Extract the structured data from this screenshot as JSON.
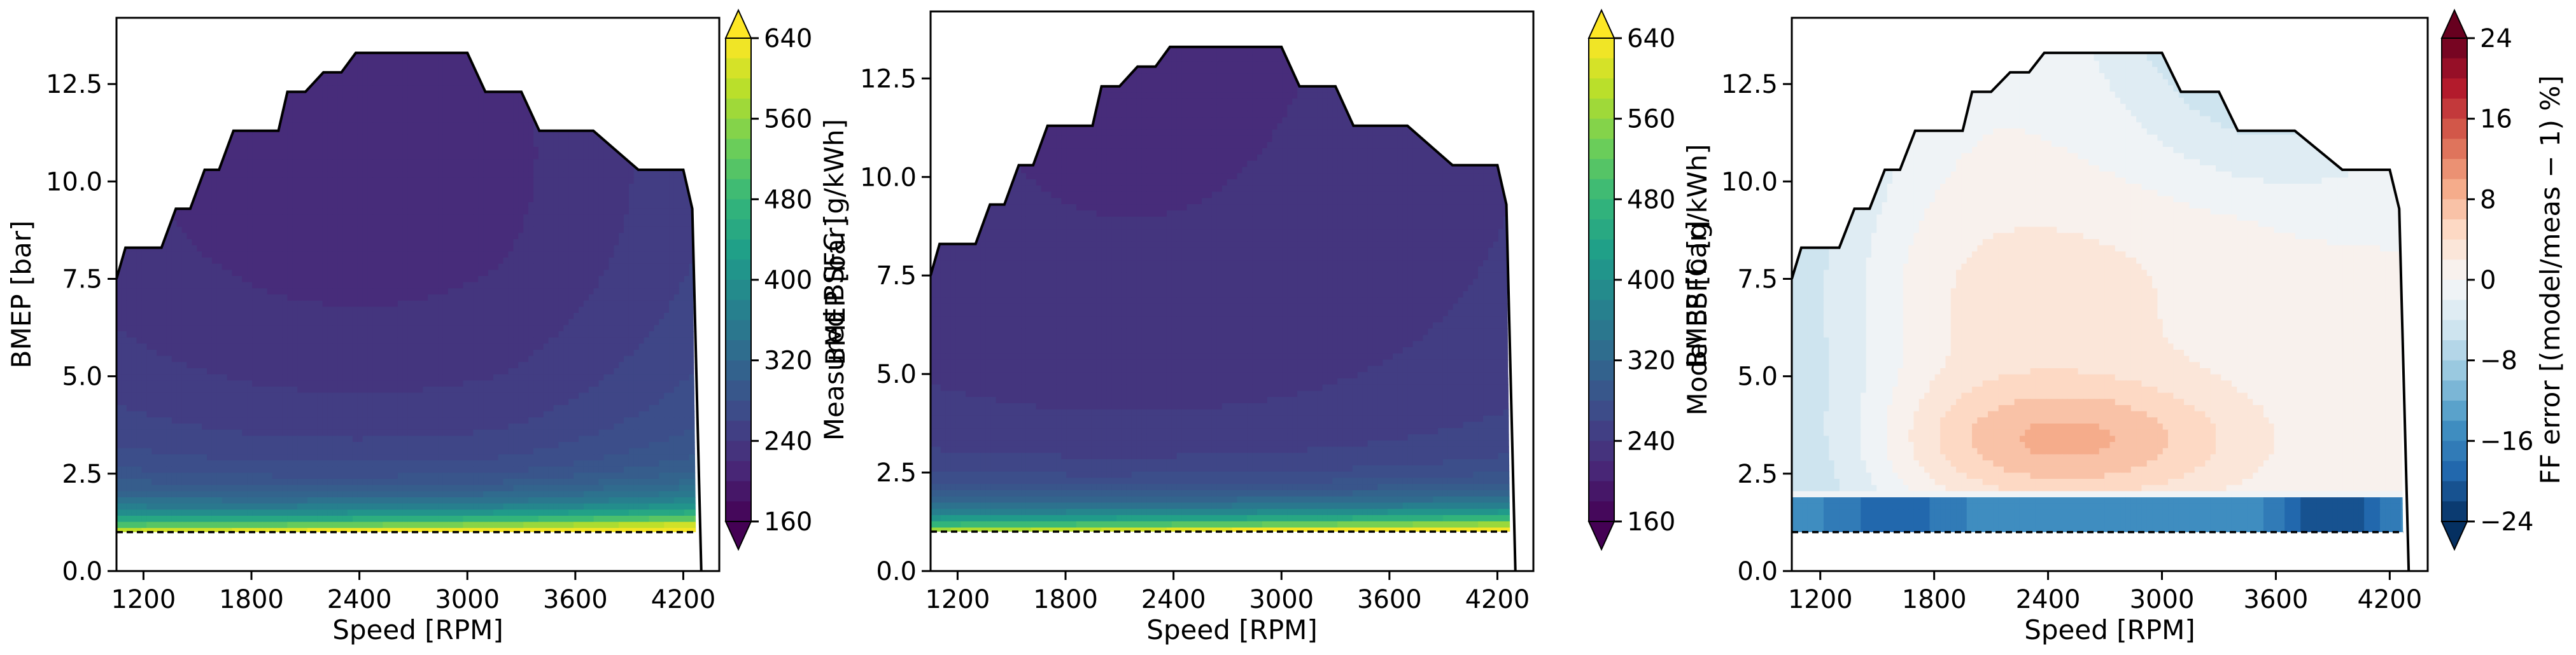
{
  "figure": {
    "panels": [
      {
        "colorbar_label": "Measured BSFC [g/kWh]",
        "colormap": "viridis"
      },
      {
        "colorbar_label": "Model BSFC [g/kWh]",
        "colormap": "viridis"
      },
      {
        "colorbar_label": "FF error  [(model/meas − 1) %]",
        "colormap": "RdBu_r"
      }
    ]
  },
  "chart_data": [
    {
      "type": "heatmap",
      "title": "",
      "xlabel": "Speed [RPM]",
      "ylabel": "BMEP [bar]",
      "xlim": [
        1050,
        4400
      ],
      "ylim": [
        0,
        14.2
      ],
      "xticks": [
        "1200",
        "1800",
        "2400",
        "3000",
        "3600",
        "4200"
      ],
      "yticks": [
        "0.0",
        "2.5",
        "5.0",
        "7.5",
        "10.0",
        "12.5"
      ],
      "colorbar": {
        "label": "Measured BSFC [g/kWh]",
        "range": [
          160,
          640
        ],
        "ticks": [
          "160",
          "240",
          "320",
          "400",
          "480",
          "560",
          "640"
        ]
      },
      "limit_curve": {
        "x": [
          1050,
          1100,
          1300,
          1380,
          1460,
          1540,
          1620,
          1700,
          1800,
          1950,
          2000,
          2100,
          2200,
          2300,
          2380,
          3000,
          3100,
          3300,
          3400,
          3700,
          3950,
          4200,
          4250
        ],
        "y": [
          7.5,
          8.3,
          8.3,
          9.3,
          9.3,
          10.3,
          10.3,
          11.3,
          11.3,
          11.3,
          12.3,
          12.3,
          12.8,
          12.8,
          13.3,
          13.3,
          12.3,
          12.3,
          11.3,
          11.3,
          10.3,
          10.3,
          9.3
        ]
      },
      "min_bmep_line": {
        "y": 1.0,
        "style": "dashed"
      },
      "contour_field": {
        "min_bsfc": 220,
        "optimum_speed": 2400,
        "optimum_bmep": 9.5
      }
    },
    {
      "type": "heatmap",
      "title": "",
      "xlabel": "Speed [RPM]",
      "ylabel": "BMEP [bar]",
      "xlim": [
        1050,
        4400
      ],
      "ylim": [
        0,
        14.2
      ],
      "xticks": [
        "1200",
        "1800",
        "2400",
        "3000",
        "3600",
        "4200"
      ],
      "yticks": [
        "0.0",
        "2.5",
        "5.0",
        "7.5",
        "10.0",
        "12.5"
      ],
      "colorbar": {
        "label": "Model BSFC [g/kWh]",
        "range": [
          160,
          640
        ],
        "ticks": [
          "160",
          "240",
          "320",
          "400",
          "480",
          "560",
          "640"
        ]
      },
      "limit_curve": {
        "x": [
          1050,
          1100,
          1300,
          1380,
          1460,
          1540,
          1620,
          1700,
          1800,
          1950,
          2000,
          2100,
          2200,
          2300,
          2380,
          3000,
          3100,
          3300,
          3400,
          3700,
          3950,
          4200,
          4250
        ],
        "y": [
          7.5,
          8.3,
          8.3,
          9.3,
          9.3,
          10.3,
          10.3,
          11.3,
          11.3,
          11.3,
          12.3,
          12.3,
          12.8,
          12.8,
          13.3,
          13.3,
          12.3,
          12.3,
          11.3,
          11.3,
          10.3,
          10.3,
          9.3
        ]
      },
      "min_bmep_line": {
        "y": 1.0,
        "style": "dashed"
      },
      "contour_field": {
        "min_bsfc": 225
      }
    },
    {
      "type": "heatmap",
      "title": "",
      "xlabel": "Speed [RPM]",
      "ylabel": "BMEP [bar]",
      "xlim": [
        1050,
        4400
      ],
      "ylim": [
        0,
        14.2
      ],
      "xticks": [
        "1200",
        "1800",
        "2400",
        "3000",
        "3600",
        "4200"
      ],
      "yticks": [
        "0.0",
        "2.5",
        "5.0",
        "7.5",
        "10.0",
        "12.5"
      ],
      "colorbar": {
        "label": "FF error  [(model/meas − 1) %]",
        "range": [
          -24,
          24
        ],
        "ticks": [
          "−24",
          "−16",
          "−8",
          "0",
          "8",
          "16",
          "24"
        ]
      },
      "limit_curve": {
        "x": [
          1050,
          1100,
          1300,
          1380,
          1460,
          1540,
          1620,
          1700,
          1800,
          1950,
          2000,
          2100,
          2200,
          2300,
          2380,
          3000,
          3100,
          3300,
          3400,
          3700,
          3950,
          4200,
          4250
        ],
        "y": [
          7.5,
          8.3,
          8.3,
          9.3,
          9.3,
          10.3,
          10.3,
          11.3,
          11.3,
          11.3,
          12.3,
          12.3,
          12.8,
          12.8,
          13.3,
          13.3,
          12.3,
          12.3,
          11.3,
          11.3,
          10.3,
          10.3,
          9.3
        ]
      },
      "min_bmep_line": {
        "y": 1.0,
        "style": "dashed"
      },
      "error_features": [
        {
          "label": "positive error region",
          "speed_range": [
            1700,
            3600
          ],
          "bmep_range": [
            2.5,
            5.0
          ],
          "value": 8
        },
        {
          "label": "low-load negative band",
          "speed_range": [
            1050,
            4250
          ],
          "bmep_range": [
            1.0,
            1.8
          ],
          "value": -20
        }
      ]
    }
  ]
}
